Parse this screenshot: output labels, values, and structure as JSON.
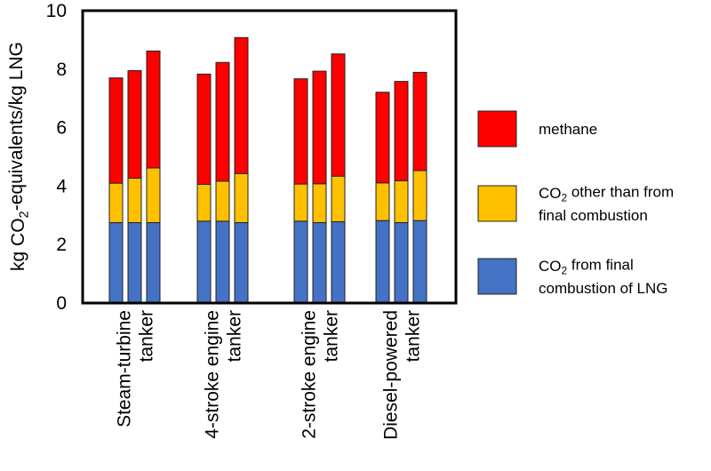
{
  "chart_data": {
    "type": "bar",
    "stacked": true,
    "ylabel": {
      "prefix": "kg CO",
      "sub": "2",
      "suffix": "-equivalents/kg LNG"
    },
    "ylim": [
      0,
      10
    ],
    "yticks": [
      0,
      2,
      4,
      6,
      8,
      10
    ],
    "grid": false,
    "legend_position": "right",
    "categories": [
      {
        "lines": [
          "Steam-turbine",
          "tanker"
        ]
      },
      {
        "lines": [
          "4-stroke engine",
          "tanker"
        ]
      },
      {
        "lines": [
          "2-stroke engine",
          "tanker"
        ]
      },
      {
        "lines": [
          "Diesel-powered",
          "tanker"
        ]
      }
    ],
    "bars_per_category": 3,
    "series": [
      {
        "key": "co2_final",
        "color": "#4472C4",
        "legend": {
          "lines": [
            {
              "prefix": "CO",
              "sub": "2",
              "suffix": " from final"
            },
            {
              "prefix": "combustion of LNG",
              "sub": "",
              "suffix": ""
            }
          ]
        },
        "values": [
          [
            2.75,
            2.75,
            2.75
          ],
          [
            2.8,
            2.8,
            2.75
          ],
          [
            2.8,
            2.75,
            2.78
          ],
          [
            2.82,
            2.75,
            2.82
          ]
        ]
      },
      {
        "key": "co2_other",
        "color": "#FFC000",
        "legend": {
          "lines": [
            {
              "prefix": "CO",
              "sub": "2",
              "suffix": " other than from"
            },
            {
              "prefix": "final combustion",
              "sub": "",
              "suffix": ""
            }
          ]
        },
        "values": [
          [
            1.35,
            1.52,
            1.87
          ],
          [
            1.26,
            1.37,
            1.68
          ],
          [
            1.27,
            1.33,
            1.56
          ],
          [
            1.29,
            1.43,
            1.71
          ]
        ]
      },
      {
        "key": "methane",
        "color": "#FF0000",
        "legend": {
          "lines": [
            {
              "prefix": "methane",
              "sub": "",
              "suffix": ""
            }
          ]
        },
        "values": [
          [
            3.6,
            3.68,
            4.0
          ],
          [
            3.77,
            4.06,
            4.65
          ],
          [
            3.6,
            3.85,
            4.18
          ],
          [
            3.1,
            3.4,
            3.36
          ]
        ]
      }
    ]
  }
}
